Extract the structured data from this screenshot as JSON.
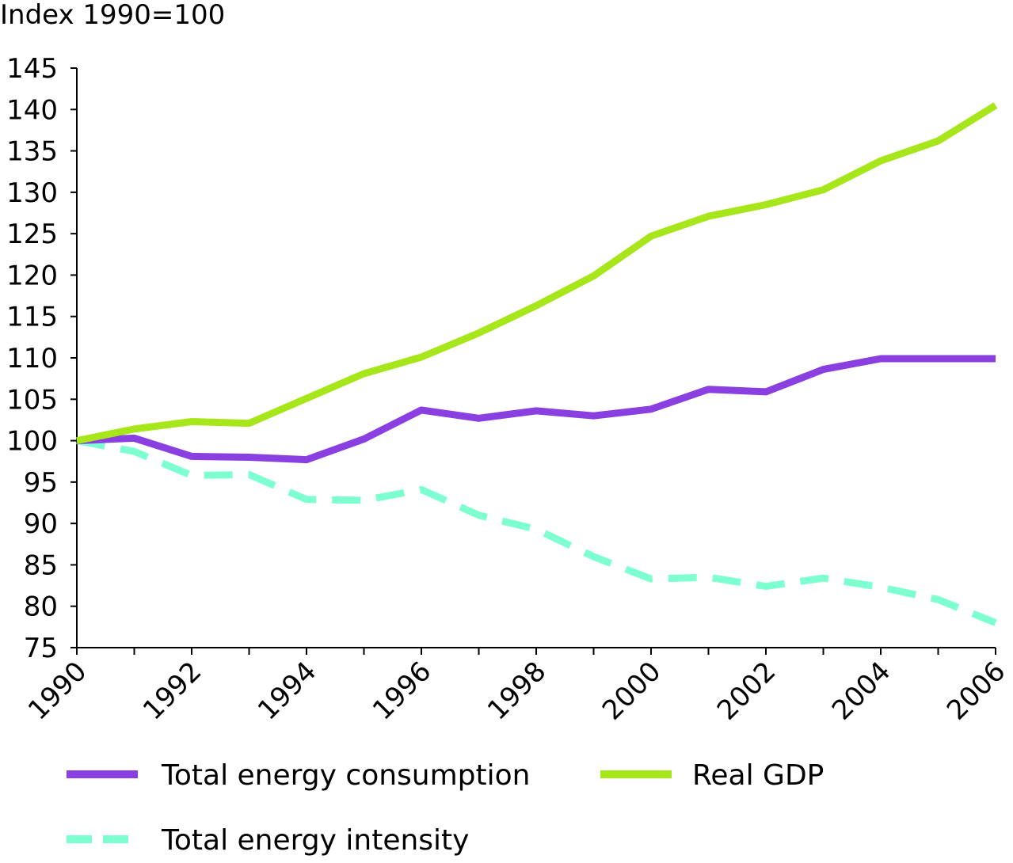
{
  "chart_data": {
    "type": "line",
    "ylabel": "Index 1990=100",
    "xlabel": "",
    "title": "",
    "x": [
      1990,
      1991,
      1992,
      1993,
      1994,
      1995,
      1996,
      1997,
      1998,
      1999,
      2000,
      2001,
      2002,
      2003,
      2004,
      2005,
      2006
    ],
    "x_tick_labels": [
      "1990",
      "1992",
      "1994",
      "1996",
      "1998",
      "2000",
      "2002",
      "2004",
      "2006"
    ],
    "y_tick_labels": [
      "75",
      "80",
      "85",
      "90",
      "95",
      "100",
      "105",
      "110",
      "115",
      "120",
      "125",
      "130",
      "135",
      "140",
      "145"
    ],
    "xlim": [
      1990,
      2006
    ],
    "ylim": [
      75,
      145
    ],
    "grid": false,
    "legend_position": "bottom",
    "series": [
      {
        "name": "Total energy consumption",
        "color": "#8a3fe0",
        "dash": "solid",
        "values": [
          100,
          100.3,
          98.1,
          98,
          97.7,
          100.2,
          103.7,
          102.7,
          103.6,
          103,
          103.8,
          106.2,
          105.9,
          108.6,
          109.9,
          109.9,
          109.9
        ]
      },
      {
        "name": "Real GDP",
        "color": "#a8e61c",
        "dash": "solid",
        "values": [
          100,
          101.4,
          102.3,
          102.1,
          105.1,
          108.1,
          110.1,
          113,
          116.3,
          119.9,
          124.7,
          127.1,
          128.5,
          130.3,
          133.8,
          136.2,
          140.5
        ]
      },
      {
        "name": "Total energy intensity",
        "color": "#7effd0",
        "dash": "dashed",
        "values": [
          100,
          98.7,
          95.8,
          95.9,
          92.9,
          92.8,
          94.1,
          91,
          89.3,
          86,
          83.3,
          83.5,
          82.4,
          83.4,
          82.3,
          80.8,
          78
        ]
      }
    ]
  }
}
